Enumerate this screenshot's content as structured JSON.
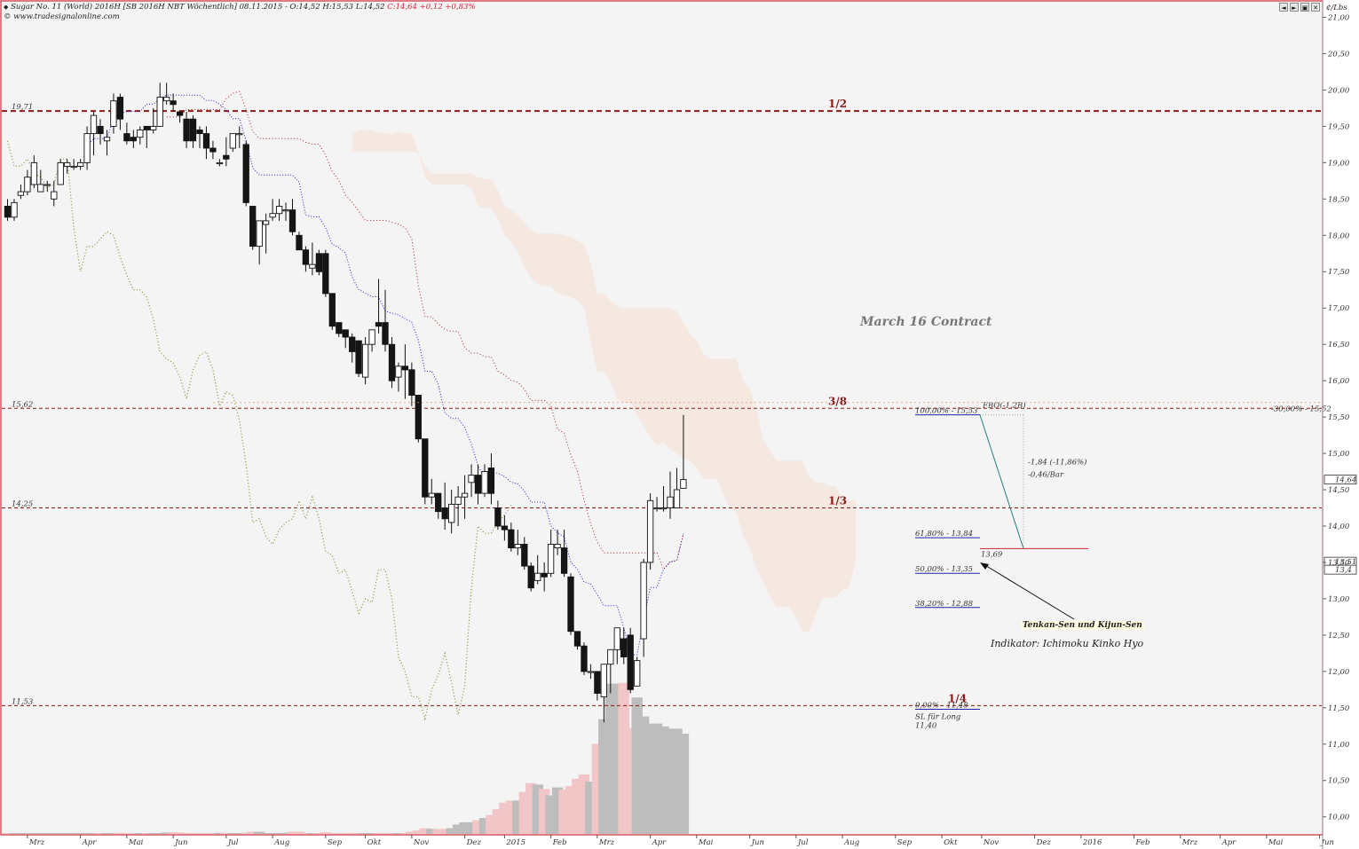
{
  "header": {
    "icon": "instrument-diamond-icon",
    "line1": "Sugar No. 11 (World) 2016H [SB 2016H NBT  Wöchentlich] 08.11.2015 - O:14,52 H:15,53 L:14,52",
    "change": "C:14,64 +0,12 +0,83%",
    "line2": "© www.tradesignalonline.com"
  },
  "toolbar": {
    "buttons": [
      "◄",
      "►",
      "▣",
      "✕"
    ]
  },
  "axis": {
    "unit": "¢/Lbs"
  },
  "colors": {
    "frame": "#cc2233",
    "plot_bg": "#f4f4f4",
    "level": "#8b1a1a",
    "tenkan": "#2222cc",
    "kijun": "#aa2222",
    "chikou": "#8a8a30",
    "cloud": "#f5dfd0",
    "fib": "#2222aa",
    "volume_up": "#bdbdbd",
    "volume_down": "#f2c6c6"
  },
  "chart_data": {
    "type": "candlestick",
    "ylim": [
      9.85,
      21.1
    ],
    "y_ticks": [
      10.0,
      10.5,
      11.0,
      11.5,
      12.0,
      12.5,
      13.0,
      13.5,
      14.0,
      14.5,
      15.0,
      15.5,
      16.0,
      16.5,
      17.0,
      17.5,
      18.0,
      18.5,
      19.0,
      19.5,
      20.0,
      20.5,
      21.0
    ],
    "y_tick_labels": [
      "10,00",
      "10,50",
      "11,00",
      "11,50",
      "12,00",
      "12,50",
      "13,00",
      "13,50",
      "14,00",
      "14,50",
      "15,00",
      "15,50",
      "16,00",
      "16,50",
      "17,00",
      "17,50",
      "18,00",
      "18,50",
      "19,00",
      "19,50",
      "20,00",
      "20,50",
      "21,00"
    ],
    "x_labels": [
      {
        "week": 3,
        "label": "Mrz"
      },
      {
        "week": 11,
        "label": "Apr"
      },
      {
        "week": 18,
        "label": "Mai"
      },
      {
        "week": 25,
        "label": "Jun"
      },
      {
        "week": 33,
        "label": "Jul"
      },
      {
        "week": 40,
        "label": "Aug"
      },
      {
        "week": 48,
        "label": "Sep"
      },
      {
        "week": 54,
        "label": "Okt"
      },
      {
        "week": 61,
        "label": "Nov"
      },
      {
        "week": 69,
        "label": "Dez"
      },
      {
        "week": 75,
        "label": "2015"
      },
      {
        "week": 82,
        "label": "Feb"
      },
      {
        "week": 89,
        "label": "Mrz"
      },
      {
        "week": 97,
        "label": "Apr"
      },
      {
        "week": 104,
        "label": "Mai"
      },
      {
        "week": 112,
        "label": "Jun"
      },
      {
        "week": 119,
        "label": "Jul"
      },
      {
        "week": 126,
        "label": "Aug"
      },
      {
        "week": 134,
        "label": "Sep"
      },
      {
        "week": 141,
        "label": "Okt"
      },
      {
        "week": 147,
        "label": "Nov"
      },
      {
        "week": 155,
        "label": "Dez"
      },
      {
        "week": 162,
        "label": "2016"
      },
      {
        "week": 170,
        "label": "Feb"
      },
      {
        "week": 177,
        "label": "Mrz"
      },
      {
        "week": 183,
        "label": "Apr"
      },
      {
        "week": 190,
        "label": "Mai"
      },
      {
        "week": 198,
        "label": "Jun"
      }
    ],
    "candles": [
      [
        18.4,
        18.25,
        18.5,
        18.2
      ],
      [
        18.25,
        18.45,
        18.5,
        18.2
      ],
      [
        18.55,
        18.6,
        18.7,
        18.5
      ],
      [
        18.6,
        18.8,
        18.9,
        18.55
      ],
      [
        18.7,
        19.0,
        19.1,
        18.65
      ],
      [
        18.6,
        18.7,
        18.9,
        18.6
      ],
      [
        18.7,
        18.7,
        18.75,
        18.6
      ],
      [
        18.5,
        18.6,
        18.75,
        18.4
      ],
      [
        18.7,
        19.0,
        19.05,
        18.7
      ],
      [
        18.95,
        19.0,
        19.05,
        18.85
      ],
      [
        18.95,
        18.95,
        19.05,
        18.9
      ],
      [
        18.95,
        19.0,
        19.05,
        18.9
      ],
      [
        19.0,
        19.4,
        19.5,
        18.9
      ],
      [
        19.4,
        19.65,
        19.7,
        19.1
      ],
      [
        19.5,
        19.4,
        19.6,
        19.25
      ],
      [
        19.3,
        19.35,
        19.45,
        19.1
      ],
      [
        19.5,
        19.85,
        19.95,
        19.4
      ],
      [
        19.9,
        19.6,
        19.95,
        19.45
      ],
      [
        19.4,
        19.3,
        19.55,
        19.25
      ],
      [
        19.35,
        19.3,
        19.45,
        19.2
      ],
      [
        19.35,
        19.45,
        19.5,
        19.25
      ],
      [
        19.5,
        19.45,
        19.5,
        19.2
      ],
      [
        19.45,
        19.5,
        19.75,
        19.4
      ],
      [
        19.5,
        19.9,
        20.1,
        19.5
      ],
      [
        19.85,
        19.9,
        20.1,
        19.8
      ],
      [
        19.85,
        19.8,
        19.95,
        19.7
      ],
      [
        19.7,
        19.65,
        19.7,
        19.55
      ],
      [
        19.6,
        19.3,
        19.7,
        19.2
      ],
      [
        19.6,
        19.3,
        19.65,
        19.2
      ],
      [
        19.45,
        19.4,
        19.5,
        19.2
      ],
      [
        19.4,
        19.2,
        19.5,
        19.05
      ],
      [
        19.2,
        19.15,
        19.3,
        19.05
      ],
      [
        19.0,
        19.0,
        19.05,
        18.95
      ],
      [
        19.1,
        19.05,
        19.35,
        18.95
      ],
      [
        19.2,
        19.4,
        19.4,
        19.15
      ],
      [
        19.4,
        19.4,
        19.5,
        19.2
      ],
      [
        19.25,
        18.45,
        19.3,
        18.4
      ],
      [
        18.4,
        17.85,
        18.4,
        17.8
      ],
      [
        17.85,
        18.2,
        18.2,
        17.6
      ],
      [
        18.15,
        18.2,
        18.3,
        17.75
      ],
      [
        18.25,
        18.3,
        18.5,
        18.2
      ],
      [
        18.3,
        18.4,
        18.5,
        18.2
      ],
      [
        18.35,
        18.35,
        18.45,
        18.2
      ],
      [
        18.35,
        18.05,
        18.5,
        18.0
      ],
      [
        18.0,
        17.8,
        18.05,
        17.8
      ],
      [
        17.8,
        17.6,
        17.85,
        17.5
      ],
      [
        17.55,
        17.6,
        17.9,
        17.45
      ],
      [
        17.75,
        17.5,
        17.8,
        17.45
      ],
      [
        17.75,
        17.2,
        17.8,
        17.15
      ],
      [
        17.2,
        16.75,
        17.2,
        16.7
      ],
      [
        16.8,
        16.65,
        16.8,
        16.6
      ],
      [
        16.7,
        16.6,
        16.7,
        16.45
      ],
      [
        16.6,
        16.4,
        16.65,
        16.25
      ],
      [
        16.55,
        16.1,
        16.55,
        16.05
      ],
      [
        16.05,
        16.5,
        16.6,
        15.95
      ],
      [
        16.5,
        16.7,
        16.7,
        16.4
      ],
      [
        16.8,
        16.75,
        17.4,
        16.65
      ],
      [
        16.8,
        16.5,
        17.25,
        16.4
      ],
      [
        16.5,
        16.0,
        16.6,
        15.9
      ],
      [
        16.05,
        16.2,
        16.25,
        15.85
      ],
      [
        16.2,
        16.15,
        16.5,
        15.75
      ],
      [
        16.15,
        15.8,
        16.25,
        15.65
      ],
      [
        15.8,
        15.2,
        15.8,
        15.15
      ],
      [
        15.2,
        14.4,
        15.2,
        14.3
      ],
      [
        14.4,
        14.45,
        14.65,
        14.3
      ],
      [
        14.45,
        14.2,
        14.45,
        14.1
      ],
      [
        14.25,
        14.1,
        14.6,
        13.95
      ],
      [
        14.05,
        14.3,
        14.5,
        13.9
      ],
      [
        14.3,
        14.4,
        14.55,
        14.0
      ],
      [
        14.4,
        14.45,
        14.7,
        14.1
      ],
      [
        14.6,
        14.7,
        14.85,
        14.4
      ],
      [
        14.7,
        14.45,
        14.85,
        14.3
      ],
      [
        14.45,
        14.75,
        14.85,
        14.4
      ],
      [
        14.8,
        14.45,
        15.0,
        14.3
      ],
      [
        14.25,
        14.0,
        14.35,
        13.95
      ],
      [
        14.0,
        13.95,
        14.15,
        13.8
      ],
      [
        13.95,
        13.7,
        14.05,
        13.65
      ],
      [
        13.7,
        13.75,
        13.95,
        13.6
      ],
      [
        13.75,
        13.45,
        13.85,
        13.4
      ],
      [
        13.45,
        13.15,
        13.5,
        13.1
      ],
      [
        13.25,
        13.35,
        13.6,
        13.2
      ],
      [
        13.35,
        13.3,
        13.5,
        13.1
      ],
      [
        13.35,
        13.75,
        13.95,
        13.3
      ],
      [
        13.7,
        13.75,
        13.95,
        13.6
      ],
      [
        13.7,
        13.35,
        13.95,
        13.3
      ],
      [
        13.3,
        12.55,
        13.35,
        12.5
      ],
      [
        12.55,
        12.35,
        12.55,
        12.3
      ],
      [
        12.35,
        12.0,
        12.4,
        11.95
      ],
      [
        12.0,
        12.0,
        12.1,
        11.9
      ],
      [
        12.0,
        11.7,
        12.0,
        11.6
      ],
      [
        11.65,
        12.1,
        12.1,
        11.3
      ],
      [
        12.1,
        12.3,
        12.3,
        11.7
      ],
      [
        12.3,
        12.6,
        12.6,
        12.1
      ],
      [
        12.45,
        12.2,
        12.6,
        12.1
      ],
      [
        12.5,
        11.75,
        12.6,
        11.7
      ],
      [
        11.8,
        12.15,
        12.2,
        11.8
      ],
      [
        12.45,
        13.5,
        13.55,
        12.2
      ],
      [
        13.5,
        14.35,
        14.45,
        13.4
      ],
      [
        14.25,
        14.25,
        14.4,
        14.2
      ],
      [
        14.25,
        14.25,
        14.55,
        14.2
      ],
      [
        14.25,
        14.4,
        14.75,
        14.1
      ],
      [
        14.25,
        14.5,
        14.8,
        14.25
      ],
      [
        14.52,
        14.64,
        15.53,
        14.52
      ]
    ],
    "volume": [
      0.1,
      0.1,
      0.1,
      0.1,
      0.1,
      0.1,
      0.1,
      0.1,
      0.1,
      0.1,
      0.1,
      0.1,
      0.1,
      0.1,
      0.1,
      0.1,
      0.1,
      0.15,
      0.1,
      0.1,
      0.1,
      0.1,
      0.1,
      0.1,
      0.2,
      0.25,
      0.2,
      0.1,
      0.1,
      0.1,
      0.1,
      0.1,
      0.15,
      0.1,
      0.1,
      0.1,
      0.15,
      0.3,
      0.3,
      0.1,
      0.1,
      0.1,
      0.15,
      0.3,
      0.3,
      0.1,
      0.1,
      0.1,
      0.25,
      0.1,
      0.1,
      0.1,
      0.1,
      0.15,
      0.1,
      0.1,
      0.1,
      0.1,
      0.1,
      0.1,
      0.15,
      0.3,
      0.5,
      0.8,
      0.7,
      0.65,
      0.7,
      0.8,
      1.3,
      1.6,
      1.6,
      1.9,
      2.2,
      2.6,
      3.4,
      4.3,
      4.6,
      4.6,
      5.8,
      7.0,
      6.8,
      6.2,
      5.3,
      6.4,
      6.1,
      6.6,
      7.6,
      8.2,
      7.2,
      12.4,
      15.8,
      20.7,
      20.7,
      20.8,
      14.6,
      18.8,
      16.2,
      15.2,
      15.2,
      14.8,
      14.5,
      14.5,
      13.8
    ],
    "volume_scale": 22,
    "levels": [
      {
        "value": 19.71,
        "label": "19,71",
        "name": "1/2",
        "style": "thick"
      },
      {
        "value": 15.62,
        "label": "15,62",
        "name": "3/8",
        "style": "thin"
      },
      {
        "value": 14.25,
        "label": "14,25",
        "name": "1/3",
        "style": "thin"
      },
      {
        "value": 11.53,
        "label": "11,53",
        "name": "1/4",
        "style": "thin"
      }
    ],
    "fib": [
      {
        "value": 15.53,
        "label": "100,00% - 15,53"
      },
      {
        "value": 13.84,
        "label": "61,80% - 13,84"
      },
      {
        "value": 13.35,
        "label": "50,00% - 13,35"
      },
      {
        "value": 12.88,
        "label": "38,20% - 12,88"
      },
      {
        "value": 11.48,
        "label": "0,00% - 11,48"
      }
    ],
    "price_tags": [
      {
        "value": 14.64,
        "label": "14,64"
      },
      {
        "value": 13.51,
        "label": "13,51"
      },
      {
        "value": 13.4,
        "label": "13,4"
      }
    ],
    "annotations": {
      "contract": "March 16 Contract",
      "tenkan_kijun": "Tenkan-Sen und Kijun-Sen",
      "indicator": "Indikator: Ichimoku Kinko Hyo",
      "trend_change": "-1,84 (-11,86%)",
      "trend_rate": "-0,46/Bar",
      "target_value": "13,69",
      "sl_label": "SL für Long",
      "sl_value": "11,40",
      "top_right_pct": "-30,00% - 15,52",
      "faint_label": "FBO(-1,2B)"
    }
  }
}
